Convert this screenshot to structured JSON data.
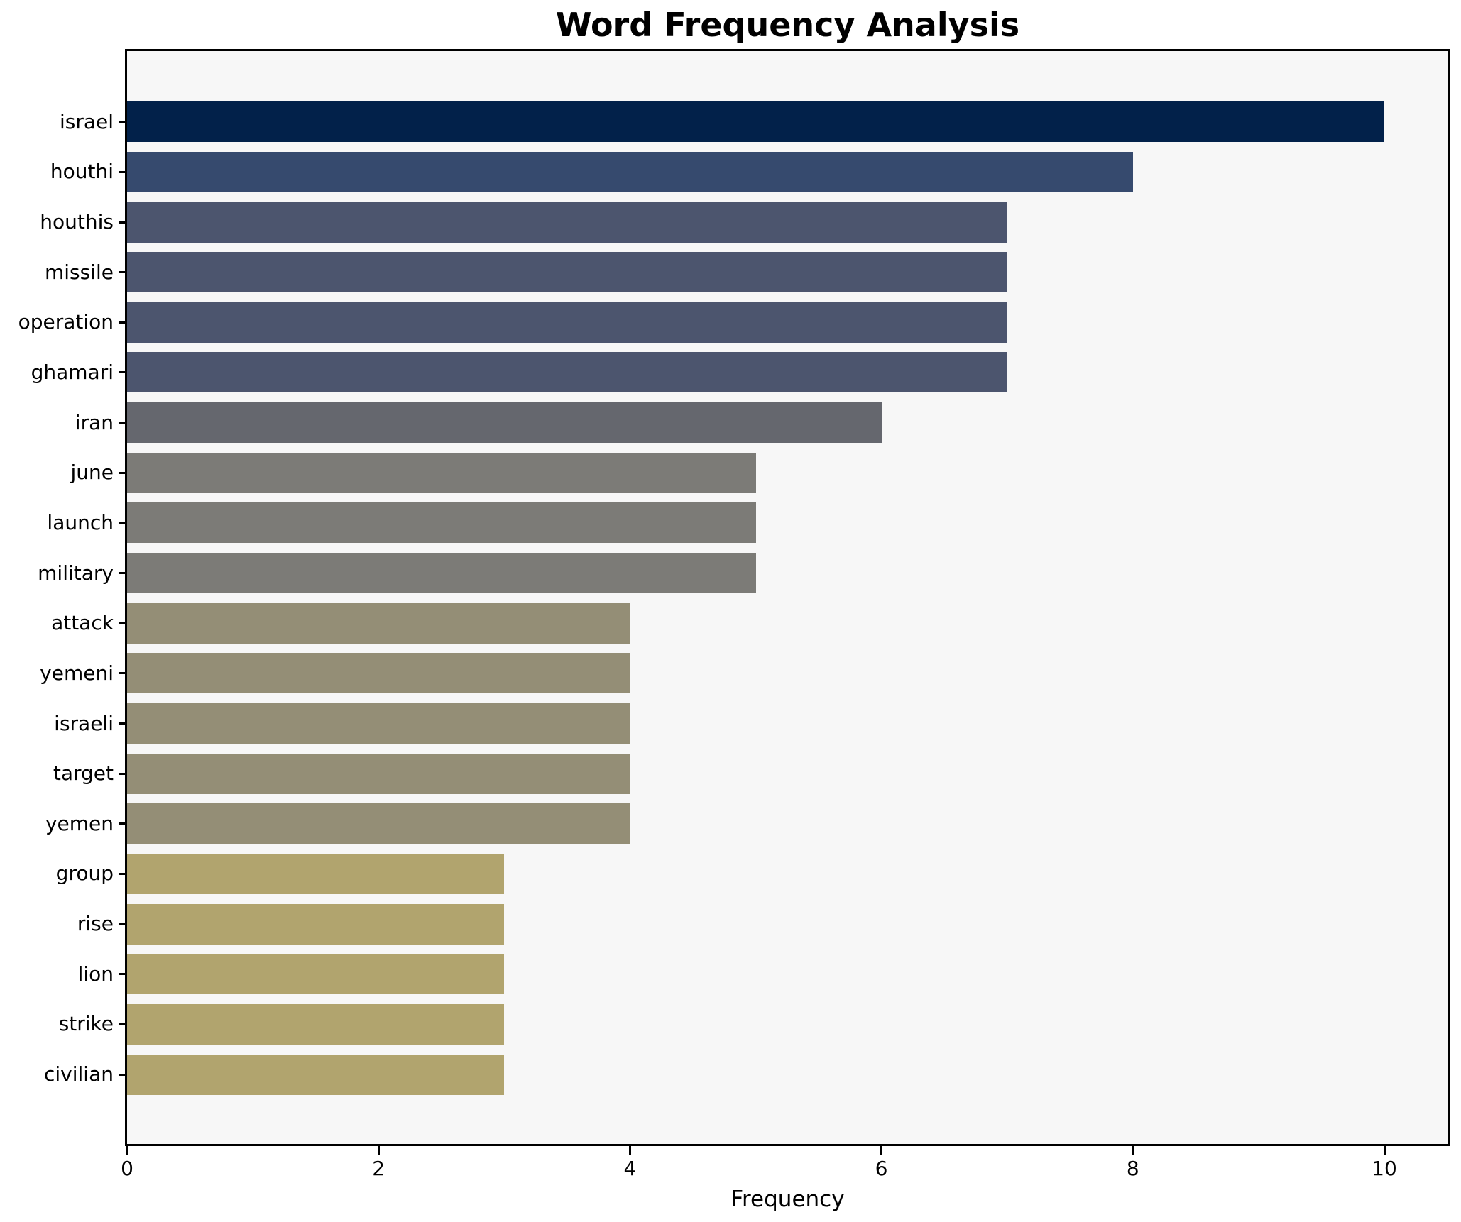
{
  "chart_data": {
    "type": "bar",
    "orientation": "horizontal",
    "title": "Word Frequency Analysis",
    "xlabel": "Frequency",
    "ylabel": "",
    "categories": [
      "israel",
      "houthi",
      "houthis",
      "missile",
      "operation",
      "ghamari",
      "iran",
      "june",
      "launch",
      "military",
      "attack",
      "yemeni",
      "israeli",
      "target",
      "yemen",
      "group",
      "rise",
      "lion",
      "strike",
      "civilian"
    ],
    "values": [
      10,
      8,
      7,
      7,
      7,
      7,
      6,
      5,
      5,
      5,
      4,
      4,
      4,
      4,
      4,
      3,
      3,
      3,
      3,
      3
    ],
    "bar_colors": [
      "#02214a",
      "#364a6e",
      "#4c556e",
      "#4c556e",
      "#4c556e",
      "#4c556e",
      "#65676e",
      "#7c7b77",
      "#7c7b77",
      "#7c7b77",
      "#948e76",
      "#948e76",
      "#948e76",
      "#948e76",
      "#948e76",
      "#b1a46e",
      "#b1a46e",
      "#b1a46e",
      "#b1a46e",
      "#b1a46e"
    ],
    "xlim": [
      0,
      10.5
    ],
    "xticks": [
      0,
      2,
      4,
      6,
      8,
      10
    ],
    "grid": false,
    "legend_position": "none",
    "plot_background": "#f7f7f7",
    "figure_background": "#ffffff",
    "axis_color": "#000000",
    "title_color": "#000000"
  }
}
